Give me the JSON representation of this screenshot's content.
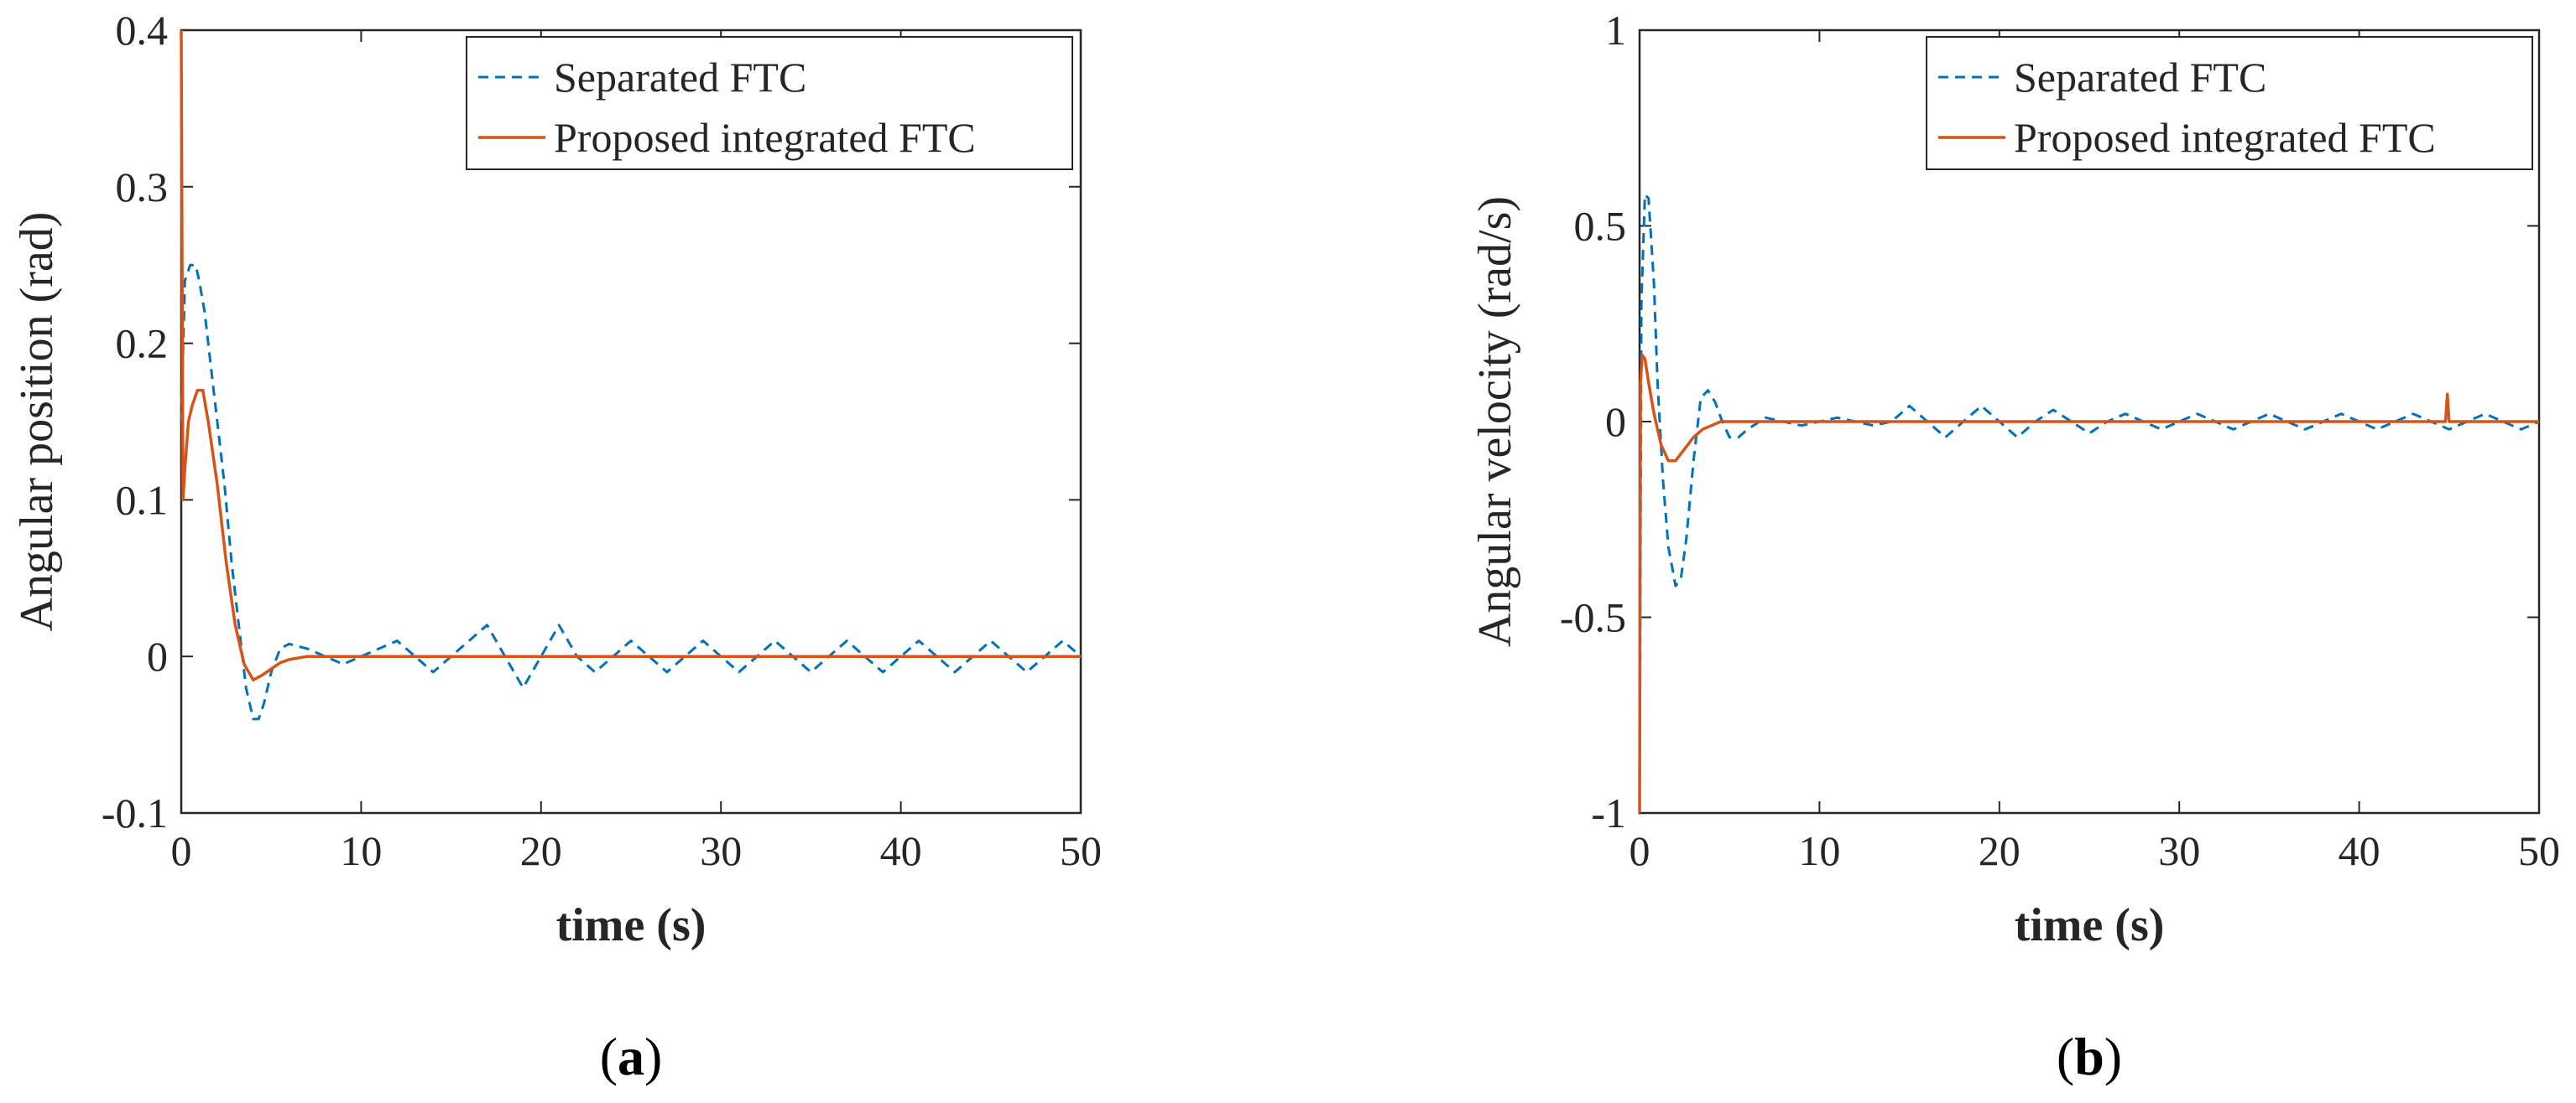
{
  "chart_data": [
    {
      "type": "line",
      "panel": "a",
      "caption_open": "(",
      "caption_letter": "a",
      "caption_close": ")",
      "title": "",
      "xlabel": "time (s)",
      "ylabel": "Angular position (rad)",
      "xlim": [
        0,
        50
      ],
      "ylim": [
        -0.1,
        0.4
      ],
      "xticks": [
        "0",
        "10",
        "20",
        "30",
        "40",
        "50"
      ],
      "yticks": [
        "-0.1",
        "0",
        "0.1",
        "0.2",
        "0.3",
        "0.4"
      ],
      "xtick_values": [
        0,
        10,
        20,
        30,
        40,
        50
      ],
      "ytick_values": [
        -0.1,
        0,
        0.1,
        0.2,
        0.3,
        0.4
      ],
      "legend_location": "top-right",
      "series": [
        {
          "name": "Separated FTC",
          "style": "dashed",
          "color": "#0072BD",
          "x": [
            0,
            0.2,
            0.5,
            0.8,
            1.0,
            1.3,
            1.6,
            2.0,
            2.4,
            2.8,
            3.2,
            3.6,
            4.0,
            4.3,
            4.6,
            5.0,
            5.5,
            6.0,
            7.0,
            8.0,
            9.0,
            10.0,
            11.0,
            12.0,
            13.0,
            14.0,
            15.0,
            16.0,
            17.0,
            18.0,
            19.0,
            20.0,
            21.0,
            22.0,
            23.0,
            24.0,
            25.0,
            26.0,
            27.0,
            28.0,
            29.0,
            30.0,
            31.0,
            32.0,
            33.0,
            34.0,
            35.0,
            36.0,
            37.0,
            38.0,
            39.0,
            40.0,
            41.0,
            42.0,
            43.0,
            44.0,
            45.0,
            46.0,
            47.0,
            48.0,
            49.0,
            50.0
          ],
          "y": [
            0.15,
            0.24,
            0.25,
            0.25,
            0.24,
            0.22,
            0.19,
            0.15,
            0.11,
            0.06,
            0.02,
            -0.02,
            -0.04,
            -0.04,
            -0.03,
            -0.01,
            0.005,
            0.008,
            0.005,
            0.0,
            -0.005,
            0.0,
            0.005,
            0.01,
            0.0,
            -0.01,
            0.0,
            0.01,
            0.02,
            0.0,
            -0.02,
            0.0,
            0.02,
            0.0,
            -0.01,
            0.0,
            0.01,
            0.0,
            -0.01,
            0.0,
            0.01,
            0.0,
            -0.01,
            0.0,
            0.01,
            0.0,
            -0.01,
            0.0,
            0.01,
            0.0,
            -0.01,
            0.0,
            0.01,
            0.0,
            -0.01,
            0.0,
            0.01,
            0.0,
            -0.01,
            0.0,
            0.01,
            0.0
          ]
        },
        {
          "name": "Proposed integrated FTC",
          "style": "solid",
          "color": "#D95319",
          "x": [
            0,
            0.1,
            0.2,
            0.4,
            0.6,
            0.9,
            1.2,
            1.5,
            2.0,
            2.5,
            3.0,
            3.5,
            4.0,
            4.5,
            5.0,
            5.5,
            6.0,
            7.0,
            8.0,
            10.0,
            15.0,
            20.0,
            25.0,
            30.0,
            35.0,
            40.0,
            45.0,
            50.0
          ],
          "y": [
            0.4,
            0.1,
            0.12,
            0.15,
            0.16,
            0.17,
            0.17,
            0.15,
            0.11,
            0.06,
            0.02,
            -0.005,
            -0.015,
            -0.012,
            -0.008,
            -0.004,
            -0.002,
            0.0,
            0.0,
            0.0,
            0.0,
            0.0,
            0.0,
            0.0,
            0.0,
            0.0,
            0.0,
            0.0
          ]
        }
      ]
    },
    {
      "type": "line",
      "panel": "b",
      "caption_open": "(",
      "caption_letter": "b",
      "caption_close": ")",
      "title": "",
      "xlabel": "time (s)",
      "ylabel": "Angular velocity (rad/s)",
      "xlim": [
        0,
        50
      ],
      "ylim": [
        -1,
        1
      ],
      "xticks": [
        "0",
        "10",
        "20",
        "30",
        "40",
        "50"
      ],
      "yticks": [
        "-1",
        "-0.5",
        "0",
        "0.5",
        "1"
      ],
      "xtick_values": [
        0,
        10,
        20,
        30,
        40,
        50
      ],
      "ytick_values": [
        -1,
        -0.5,
        0,
        0.5,
        1
      ],
      "legend_location": "top-right",
      "series": [
        {
          "name": "Separated FTC",
          "style": "dashed",
          "color": "#0072BD",
          "x": [
            0,
            0.1,
            0.3,
            0.5,
            0.8,
            1.0,
            1.3,
            1.6,
            2.0,
            2.3,
            2.6,
            3.0,
            3.4,
            3.8,
            4.2,
            4.6,
            5.0,
            5.5,
            6.0,
            7.0,
            8.0,
            9.0,
            10.0,
            11.0,
            12.0,
            13.0,
            14.0,
            15.0,
            16.0,
            17.0,
            18.0,
            19.0,
            20.0,
            21.0,
            22.0,
            23.0,
            24.0,
            25.0,
            26.0,
            27.0,
            28.0,
            29.0,
            30.0,
            31.0,
            32.0,
            33.0,
            34.0,
            35.0,
            36.0,
            37.0,
            38.0,
            39.0,
            40.0,
            41.0,
            42.0,
            43.0,
            44.0,
            45.0,
            46.0,
            47.0,
            48.0,
            49.0,
            50.0
          ],
          "y": [
            -1.0,
            0.3,
            0.58,
            0.57,
            0.35,
            0.1,
            -0.15,
            -0.32,
            -0.42,
            -0.4,
            -0.3,
            -0.1,
            0.06,
            0.08,
            0.05,
            0.0,
            -0.04,
            -0.04,
            -0.02,
            0.01,
            0.0,
            -0.01,
            0.0,
            0.01,
            0.0,
            -0.01,
            0.0,
            0.04,
            0.0,
            -0.04,
            0.0,
            0.04,
            0.0,
            -0.04,
            0.0,
            0.03,
            0.0,
            -0.03,
            0.0,
            0.02,
            0.0,
            -0.02,
            0.0,
            0.02,
            0.0,
            -0.02,
            0.0,
            0.02,
            0.0,
            -0.02,
            0.0,
            0.02,
            0.0,
            -0.02,
            0.0,
            0.02,
            0.0,
            -0.02,
            0.0,
            0.02,
            0.0,
            -0.02,
            0.0
          ]
        },
        {
          "name": "Proposed integrated FTC",
          "style": "solid",
          "color": "#D95319",
          "x": [
            0,
            0.05,
            0.15,
            0.3,
            0.5,
            0.8,
            1.2,
            1.6,
            2.0,
            2.5,
            3.0,
            3.5,
            4.0,
            4.5,
            5.0,
            6.0,
            8.0,
            10.0,
            20.0,
            30.0,
            40.0,
            44.8,
            44.9,
            45.0,
            45.1,
            50.0
          ],
          "y": [
            -1.0,
            0.1,
            0.17,
            0.16,
            0.1,
            0.02,
            -0.06,
            -0.1,
            -0.1,
            -0.07,
            -0.04,
            -0.02,
            -0.01,
            0.0,
            0.0,
            0.0,
            0.0,
            0.0,
            0.0,
            0.0,
            0.0,
            0.0,
            0.07,
            0.0,
            0.0,
            0.0
          ]
        }
      ]
    }
  ]
}
